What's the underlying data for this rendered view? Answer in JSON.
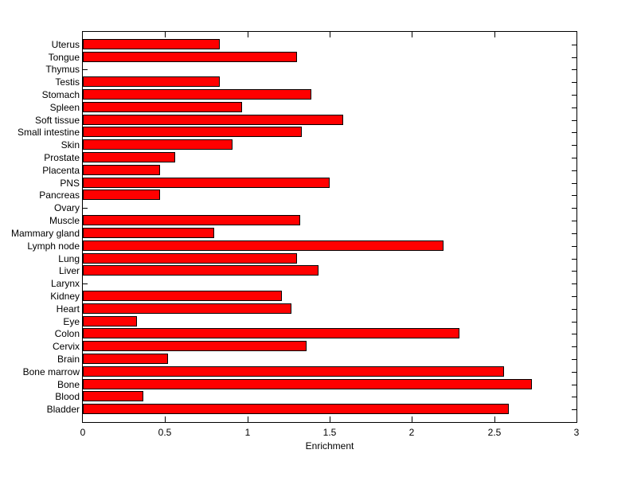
{
  "chart_data": {
    "type": "bar",
    "orientation": "horizontal",
    "title": "",
    "xlabel": "Enrichment",
    "ylabel": "",
    "xlim": [
      0,
      3
    ],
    "xticks": [
      0,
      0.5,
      1,
      1.5,
      2,
      2.5,
      3
    ],
    "xtick_labels": [
      "0",
      "0.5",
      "1",
      "1.5",
      "2",
      "2.5",
      "3"
    ],
    "grid": false,
    "legend_position": "none",
    "bar_color": "#FF0000",
    "bar_edge_color": "#000000",
    "axis_color": "#000000",
    "background_color": "#FFFFFF",
    "categories_top_to_bottom": [
      "Uterus",
      "Tongue",
      "Thymus",
      "Testis",
      "Stomach",
      "Spleen",
      "Soft tissue",
      "Small intestine",
      "Skin",
      "Prostate",
      "Placenta",
      "PNS",
      "Pancreas",
      "Ovary",
      "Muscle",
      "Mammary gland",
      "Lymph node",
      "Lung",
      "Liver",
      "Larynx",
      "Kidney",
      "Heart",
      "Eye",
      "Colon",
      "Cervix",
      "Brain",
      "Bone marrow",
      "Bone",
      "Blood",
      "Bladder"
    ],
    "values": [
      0.83,
      1.3,
      0,
      0.83,
      1.39,
      0.97,
      1.58,
      1.33,
      0.91,
      0.56,
      0.47,
      1.5,
      0.47,
      0,
      1.32,
      0.8,
      2.19,
      1.3,
      1.43,
      0,
      1.21,
      1.27,
      0.33,
      2.29,
      1.36,
      0.52,
      2.56,
      2.73,
      0.37,
      2.59
    ]
  }
}
